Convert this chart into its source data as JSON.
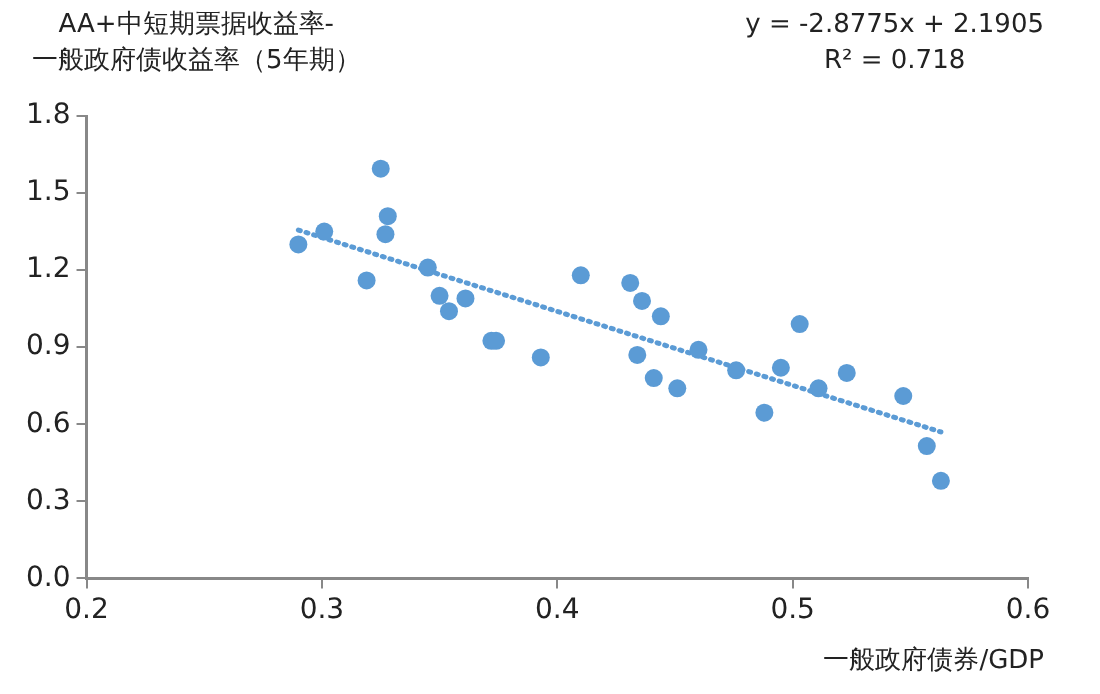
{
  "chart_data": {
    "type": "scatter",
    "ylabel": "AA+中短期票据收益率-\n一般政府债收益率（5年期）",
    "xlabel": "一般政府债券/GDP",
    "annotations": [
      "y = -2.8775x + 2.1905",
      "R² = 0.718"
    ],
    "xlim": [
      0.2,
      0.6
    ],
    "xticks": [
      0.2,
      0.3,
      0.4,
      0.5,
      0.6
    ],
    "ylim": [
      0,
      1.8
    ],
    "yticks": [
      {
        "value": 0,
        "label": "0.0"
      },
      0.3,
      0.6,
      0.9,
      1.2,
      1.5,
      1.8
    ],
    "grid": false,
    "legend": false,
    "marker": "circle",
    "series": [
      {
        "type": "scatter",
        "color": "#5b9bd5",
        "x": [
          0.29,
          0.301,
          0.325,
          0.328,
          0.327,
          0.319,
          0.345,
          0.35,
          0.354,
          0.361,
          0.372,
          0.374,
          0.393,
          0.41,
          0.431,
          0.436,
          0.444,
          0.434,
          0.441,
          0.451,
          0.46,
          0.476,
          0.488,
          0.495,
          0.503,
          0.511,
          0.523,
          0.547,
          0.557,
          0.563
        ],
        "values": [
          1.3,
          1.35,
          1.595,
          1.41,
          1.34,
          1.16,
          1.21,
          1.1,
          1.04,
          1.09,
          0.925,
          0.925,
          0.86,
          1.18,
          1.15,
          1.08,
          1.02,
          0.87,
          0.78,
          0.74,
          0.89,
          0.81,
          0.645,
          0.82,
          0.99,
          0.74,
          0.8,
          0.71,
          0.515,
          0.38
        ]
      },
      {
        "type": "line",
        "color": "#5b9bd5",
        "line_style": "dotted",
        "marker": "none",
        "x": [
          0.29,
          0.563
        ],
        "values": [
          1.356,
          0.57
        ]
      }
    ]
  }
}
